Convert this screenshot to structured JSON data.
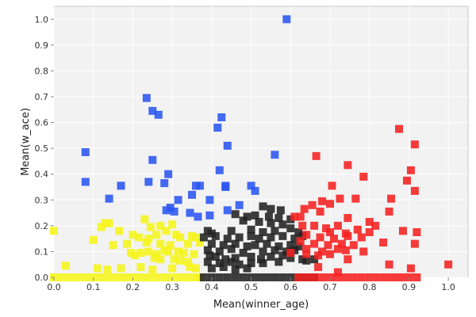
{
  "chart_data": {
    "type": "scatter",
    "xlabel": "Mean(winner_age)",
    "ylabel": "Mean(w_ace)",
    "xlim": [
      0.0,
      1.05
    ],
    "ylim": [
      0.0,
      1.05
    ],
    "xticks": [
      "0.0",
      "0.1",
      "0.2",
      "0.3",
      "0.4",
      "0.5",
      "0.6",
      "0.7",
      "0.8",
      "0.9",
      "1.0"
    ],
    "yticks": [
      "0.0",
      "0.1",
      "0.2",
      "0.3",
      "0.4",
      "0.5",
      "0.6",
      "0.7",
      "0.8",
      "0.9",
      "1.0"
    ],
    "grid": true,
    "background": "#f2f2f2",
    "marker": "square",
    "series": [
      {
        "color": "#2a55f0",
        "points": [
          [
            0.59,
            1.0
          ],
          [
            0.235,
            0.695
          ],
          [
            0.25,
            0.645
          ],
          [
            0.265,
            0.63
          ],
          [
            0.425,
            0.62
          ],
          [
            0.415,
            0.58
          ],
          [
            0.44,
            0.51
          ],
          [
            0.08,
            0.485
          ],
          [
            0.56,
            0.475
          ],
          [
            0.25,
            0.455
          ],
          [
            0.42,
            0.415
          ],
          [
            0.29,
            0.4
          ],
          [
            0.08,
            0.37
          ],
          [
            0.17,
            0.355
          ],
          [
            0.24,
            0.37
          ],
          [
            0.28,
            0.365
          ],
          [
            0.37,
            0.355
          ],
          [
            0.36,
            0.355
          ],
          [
            0.435,
            0.35
          ],
          [
            0.5,
            0.355
          ],
          [
            0.435,
            0.355
          ],
          [
            0.51,
            0.335
          ],
          [
            0.35,
            0.32
          ],
          [
            0.14,
            0.305
          ],
          [
            0.315,
            0.3
          ],
          [
            0.395,
            0.3
          ],
          [
            0.47,
            0.28
          ],
          [
            0.295,
            0.27
          ],
          [
            0.285,
            0.26
          ],
          [
            0.345,
            0.25
          ],
          [
            0.395,
            0.24
          ],
          [
            0.365,
            0.235
          ],
          [
            0.44,
            0.26
          ],
          [
            0.305,
            0.255
          ]
        ]
      },
      {
        "color": "#f5f51a",
        "points": [
          [
            0.13,
            0.21
          ],
          [
            0.14,
            0.21
          ],
          [
            0.12,
            0.195
          ],
          [
            0.23,
            0.225
          ],
          [
            0.245,
            0.195
          ],
          [
            0.27,
            0.2
          ],
          [
            0.3,
            0.205
          ],
          [
            0.285,
            0.18
          ],
          [
            0.165,
            0.18
          ],
          [
            0.0,
            0.18
          ],
          [
            0.2,
            0.165
          ],
          [
            0.215,
            0.155
          ],
          [
            0.24,
            0.15
          ],
          [
            0.26,
            0.165
          ],
          [
            0.31,
            0.165
          ],
          [
            0.32,
            0.155
          ],
          [
            0.35,
            0.16
          ],
          [
            0.36,
            0.155
          ],
          [
            0.1,
            0.145
          ],
          [
            0.15,
            0.125
          ],
          [
            0.185,
            0.13
          ],
          [
            0.235,
            0.135
          ],
          [
            0.27,
            0.13
          ],
          [
            0.295,
            0.125
          ],
          [
            0.34,
            0.13
          ],
          [
            0.37,
            0.135
          ],
          [
            0.195,
            0.095
          ],
          [
            0.205,
            0.085
          ],
          [
            0.22,
            0.095
          ],
          [
            0.24,
            0.1
          ],
          [
            0.26,
            0.09
          ],
          [
            0.28,
            0.105
          ],
          [
            0.29,
            0.1
          ],
          [
            0.315,
            0.1
          ],
          [
            0.33,
            0.095
          ],
          [
            0.355,
            0.09
          ],
          [
            0.255,
            0.075
          ],
          [
            0.27,
            0.07
          ],
          [
            0.305,
            0.07
          ],
          [
            0.32,
            0.065
          ],
          [
            0.34,
            0.06
          ],
          [
            0.03,
            0.045
          ],
          [
            0.11,
            0.035
          ],
          [
            0.135,
            0.03
          ],
          [
            0.17,
            0.035
          ],
          [
            0.22,
            0.04
          ],
          [
            0.25,
            0.03
          ],
          [
            0.3,
            0.035
          ],
          [
            0.345,
            0.04
          ],
          [
            0.36,
            0.035
          ],
          [
            0.0,
            0.0
          ],
          [
            0.02,
            0.0
          ],
          [
            0.04,
            0.0
          ],
          [
            0.06,
            0.0
          ],
          [
            0.08,
            0.0
          ],
          [
            0.1,
            0.0
          ],
          [
            0.12,
            0.0
          ],
          [
            0.14,
            0.0
          ],
          [
            0.16,
            0.0
          ],
          [
            0.18,
            0.0
          ],
          [
            0.2,
            0.0
          ],
          [
            0.22,
            0.0
          ],
          [
            0.24,
            0.0
          ],
          [
            0.26,
            0.0
          ],
          [
            0.28,
            0.0
          ],
          [
            0.3,
            0.0
          ],
          [
            0.32,
            0.0
          ],
          [
            0.34,
            0.0
          ],
          [
            0.36,
            0.0
          ],
          [
            0.37,
            0.0
          ]
        ]
      },
      {
        "color": "#222222",
        "points": [
          [
            0.53,
            0.275
          ],
          [
            0.55,
            0.265
          ],
          [
            0.575,
            0.26
          ],
          [
            0.46,
            0.245
          ],
          [
            0.49,
            0.235
          ],
          [
            0.51,
            0.24
          ],
          [
            0.545,
            0.235
          ],
          [
            0.57,
            0.23
          ],
          [
            0.6,
            0.225
          ],
          [
            0.48,
            0.22
          ],
          [
            0.52,
            0.215
          ],
          [
            0.55,
            0.21
          ],
          [
            0.58,
            0.205
          ],
          [
            0.39,
            0.18
          ],
          [
            0.4,
            0.17
          ],
          [
            0.45,
            0.18
          ],
          [
            0.5,
            0.185
          ],
          [
            0.53,
            0.175
          ],
          [
            0.56,
            0.18
          ],
          [
            0.6,
            0.19
          ],
          [
            0.62,
            0.175
          ],
          [
            0.38,
            0.155
          ],
          [
            0.41,
            0.16
          ],
          [
            0.44,
            0.15
          ],
          [
            0.47,
            0.155
          ],
          [
            0.5,
            0.16
          ],
          [
            0.52,
            0.15
          ],
          [
            0.55,
            0.155
          ],
          [
            0.58,
            0.16
          ],
          [
            0.61,
            0.15
          ],
          [
            0.63,
            0.16
          ],
          [
            0.4,
            0.13
          ],
          [
            0.43,
            0.125
          ],
          [
            0.46,
            0.13
          ],
          [
            0.49,
            0.12
          ],
          [
            0.51,
            0.125
          ],
          [
            0.54,
            0.13
          ],
          [
            0.57,
            0.12
          ],
          [
            0.6,
            0.125
          ],
          [
            0.62,
            0.12
          ],
          [
            0.39,
            0.105
          ],
          [
            0.42,
            0.1
          ],
          [
            0.45,
            0.11
          ],
          [
            0.48,
            0.095
          ],
          [
            0.53,
            0.1
          ],
          [
            0.56,
            0.105
          ],
          [
            0.59,
            0.1
          ],
          [
            0.61,
            0.105
          ],
          [
            0.395,
            0.085
          ],
          [
            0.41,
            0.08
          ],
          [
            0.435,
            0.07
          ],
          [
            0.46,
            0.075
          ],
          [
            0.5,
            0.08
          ],
          [
            0.525,
            0.07
          ],
          [
            0.55,
            0.08
          ],
          [
            0.58,
            0.085
          ],
          [
            0.6,
            0.075
          ],
          [
            0.63,
            0.07
          ],
          [
            0.66,
            0.07
          ],
          [
            0.39,
            0.06
          ],
          [
            0.42,
            0.055
          ],
          [
            0.45,
            0.06
          ],
          [
            0.47,
            0.05
          ],
          [
            0.5,
            0.055
          ],
          [
            0.53,
            0.055
          ],
          [
            0.57,
            0.06
          ],
          [
            0.64,
            0.065
          ],
          [
            0.4,
            0.035
          ],
          [
            0.43,
            0.04
          ],
          [
            0.46,
            0.03
          ],
          [
            0.49,
            0.035
          ],
          [
            0.38,
            0.0
          ],
          [
            0.4,
            0.0
          ],
          [
            0.42,
            0.0
          ],
          [
            0.44,
            0.0
          ],
          [
            0.46,
            0.0
          ],
          [
            0.48,
            0.0
          ],
          [
            0.5,
            0.0
          ],
          [
            0.52,
            0.0
          ],
          [
            0.54,
            0.0
          ],
          [
            0.56,
            0.0
          ],
          [
            0.58,
            0.0
          ],
          [
            0.6,
            0.0
          ],
          [
            0.62,
            0.0
          ],
          [
            0.64,
            0.0
          ],
          [
            0.66,
            0.0
          ]
        ]
      },
      {
        "color": "#f52020",
        "points": [
          [
            0.875,
            0.575
          ],
          [
            0.915,
            0.515
          ],
          [
            0.665,
            0.47
          ],
          [
            0.745,
            0.435
          ],
          [
            0.905,
            0.415
          ],
          [
            0.785,
            0.39
          ],
          [
            0.895,
            0.375
          ],
          [
            0.705,
            0.355
          ],
          [
            0.915,
            0.335
          ],
          [
            0.725,
            0.305
          ],
          [
            0.765,
            0.305
          ],
          [
            0.855,
            0.305
          ],
          [
            0.68,
            0.295
          ],
          [
            0.655,
            0.28
          ],
          [
            0.7,
            0.285
          ],
          [
            0.635,
            0.265
          ],
          [
            0.675,
            0.255
          ],
          [
            0.85,
            0.255
          ],
          [
            0.61,
            0.235
          ],
          [
            0.625,
            0.235
          ],
          [
            0.745,
            0.23
          ],
          [
            0.8,
            0.215
          ],
          [
            0.63,
            0.2
          ],
          [
            0.66,
            0.2
          ],
          [
            0.69,
            0.19
          ],
          [
            0.72,
            0.2
          ],
          [
            0.815,
            0.2
          ],
          [
            0.885,
            0.18
          ],
          [
            0.92,
            0.175
          ],
          [
            0.7,
            0.175
          ],
          [
            0.74,
            0.17
          ],
          [
            0.77,
            0.185
          ],
          [
            0.8,
            0.175
          ],
          [
            0.64,
            0.165
          ],
          [
            0.675,
            0.155
          ],
          [
            0.71,
            0.15
          ],
          [
            0.745,
            0.16
          ],
          [
            0.78,
            0.155
          ],
          [
            0.625,
            0.14
          ],
          [
            0.66,
            0.13
          ],
          [
            0.695,
            0.125
          ],
          [
            0.73,
            0.13
          ],
          [
            0.76,
            0.125
          ],
          [
            0.835,
            0.135
          ],
          [
            0.915,
            0.13
          ],
          [
            0.64,
            0.11
          ],
          [
            0.68,
            0.1
          ],
          [
            0.72,
            0.11
          ],
          [
            0.74,
            0.105
          ],
          [
            0.785,
            0.1
          ],
          [
            0.6,
            0.095
          ],
          [
            0.64,
            0.09
          ],
          [
            0.67,
            0.085
          ],
          [
            0.7,
            0.09
          ],
          [
            0.745,
            0.07
          ],
          [
            0.85,
            0.05
          ],
          [
            0.905,
            0.035
          ],
          [
            1.0,
            0.05
          ],
          [
            0.67,
            0.04
          ],
          [
            0.72,
            0.02
          ],
          [
            0.62,
            0.0
          ],
          [
            0.64,
            0.0
          ],
          [
            0.66,
            0.0
          ],
          [
            0.68,
            0.0
          ],
          [
            0.7,
            0.0
          ],
          [
            0.72,
            0.0
          ],
          [
            0.74,
            0.0
          ],
          [
            0.76,
            0.0
          ],
          [
            0.78,
            0.0
          ],
          [
            0.8,
            0.0
          ],
          [
            0.82,
            0.0
          ],
          [
            0.84,
            0.0
          ],
          [
            0.86,
            0.0
          ],
          [
            0.88,
            0.0
          ],
          [
            0.9,
            0.0
          ],
          [
            0.92,
            0.0
          ]
        ]
      }
    ]
  }
}
